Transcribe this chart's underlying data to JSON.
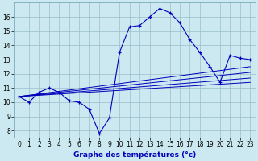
{
  "xlabel": "Graphe des températures (°c)",
  "bg_color": "#cce8f0",
  "line_color": "#0000bb",
  "xlim": [
    -0.5,
    23.5
  ],
  "ylim": [
    7.5,
    17.0
  ],
  "xticks": [
    0,
    1,
    2,
    3,
    4,
    5,
    6,
    7,
    8,
    9,
    10,
    11,
    12,
    13,
    14,
    15,
    16,
    17,
    18,
    19,
    20,
    21,
    22,
    23
  ],
  "yticks": [
    8,
    9,
    10,
    11,
    12,
    13,
    14,
    15,
    16
  ],
  "main_series": {
    "x": [
      0,
      1,
      2,
      3,
      4,
      5,
      6,
      7,
      8,
      9,
      10,
      11,
      12,
      13,
      14,
      15,
      16,
      17,
      18,
      19,
      20,
      21,
      22,
      23
    ],
    "y": [
      10.4,
      10.0,
      10.7,
      11.0,
      10.7,
      10.1,
      10.0,
      9.5,
      7.8,
      8.9,
      13.5,
      15.3,
      15.4,
      16.0,
      16.6,
      16.3,
      15.6,
      14.4,
      13.5,
      12.5,
      11.4,
      13.3,
      13.1,
      13.0
    ]
  },
  "straight_lines": [
    {
      "x0": 0,
      "y0": 10.4,
      "x1": 23,
      "y1": 12.5
    },
    {
      "x0": 0,
      "y0": 10.4,
      "x1": 23,
      "y1": 12.1
    },
    {
      "x0": 0,
      "y0": 10.4,
      "x1": 23,
      "y1": 11.7
    },
    {
      "x0": 0,
      "y0": 10.4,
      "x1": 23,
      "y1": 11.4
    }
  ]
}
